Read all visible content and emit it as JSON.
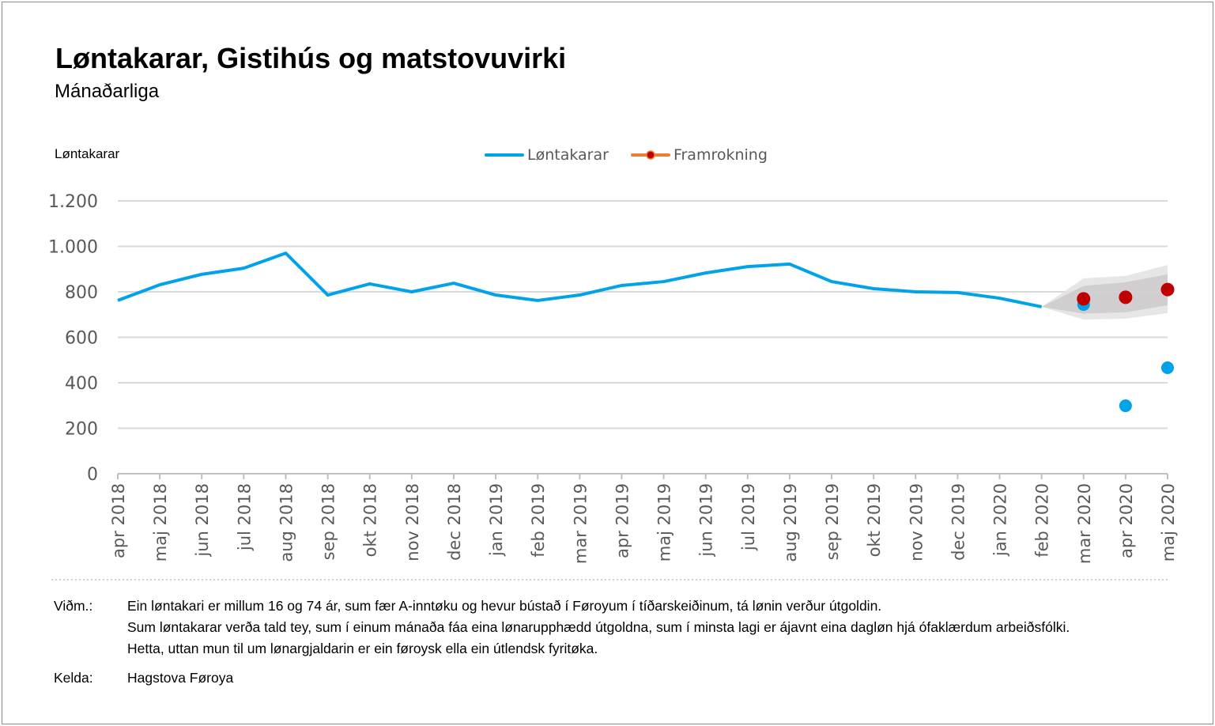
{
  "title": "Løntakarar, Gistihús og matstovuvirki",
  "subtitle": "Mánaðarliga",
  "chart_data": {
    "type": "line",
    "title": "Løntakarar, Gistihús og matstovuvirki",
    "subtitle": "Mánaðarliga",
    "ylabel": "Løntakarar",
    "ylim": [
      0,
      1200
    ],
    "yticks": [
      0,
      200,
      400,
      600,
      800,
      1000,
      1200
    ],
    "ytick_labels": [
      "0",
      "200",
      "400",
      "600",
      "800",
      "1.000",
      "1.200"
    ],
    "grid": true,
    "legend_position": "top-center",
    "categories": [
      "apr 2018",
      "maj 2018",
      "jun 2018",
      "jul 2018",
      "aug 2018",
      "sep 2018",
      "okt 2018",
      "nov 2018",
      "dec 2018",
      "jan 2019",
      "feb 2019",
      "mar 2019",
      "apr 2019",
      "maj 2019",
      "jun 2019",
      "jul 2019",
      "aug 2019",
      "sep 2019",
      "okt 2019",
      "nov 2019",
      "dec 2019",
      "jan 2020",
      "feb 2020",
      "mar 2020",
      "apr 2020",
      "maj 2020"
    ],
    "series": [
      {
        "name": "Løntakarar",
        "color": "#00a2e8",
        "values": [
          762,
          831,
          877,
          904,
          970,
          786,
          835,
          800,
          838,
          786,
          762,
          786,
          828,
          845,
          883,
          911,
          922,
          845,
          814,
          800,
          797,
          772,
          734,
          744,
          299,
          466
        ]
      },
      {
        "name": "Framrokning",
        "color": "#c00000",
        "line_color": "#ed7d31",
        "values": [
          null,
          null,
          null,
          null,
          null,
          null,
          null,
          null,
          null,
          null,
          null,
          null,
          null,
          null,
          null,
          null,
          null,
          null,
          null,
          null,
          null,
          null,
          null,
          769,
          776,
          810
        ]
      }
    ],
    "band_inner": {
      "color": "#d0cece",
      "lower": [
        734,
        704,
        710,
        741
      ],
      "upper": [
        734,
        826,
        842,
        877
      ]
    },
    "band_outer": {
      "color": "#e7e6e6",
      "lower": [
        734,
        678,
        682,
        706
      ],
      "upper": [
        734,
        859,
        870,
        918
      ]
    }
  },
  "notes": {
    "label": "Viðm.:",
    "lines": [
      "Ein løntakari er millum 16 og 74 ár, sum fær A-inntøku og hevur bústað í Føroyum í tíðarskeiðinum, tá lønin verður útgoldin.",
      "Sum løntakarar verða tald tey, sum í einum mánaða fáa eina lønarupphædd útgoldna, sum í minsta lagi er ájavnt eina dagløn hjá ófaklærdum arbeiðsfólki.",
      "Hetta, uttan mun til um lønargjaldarin er ein føroysk ella ein útlendsk fyritøka."
    ],
    "source_label": "Kelda:",
    "source": "Hagstova Føroya"
  }
}
